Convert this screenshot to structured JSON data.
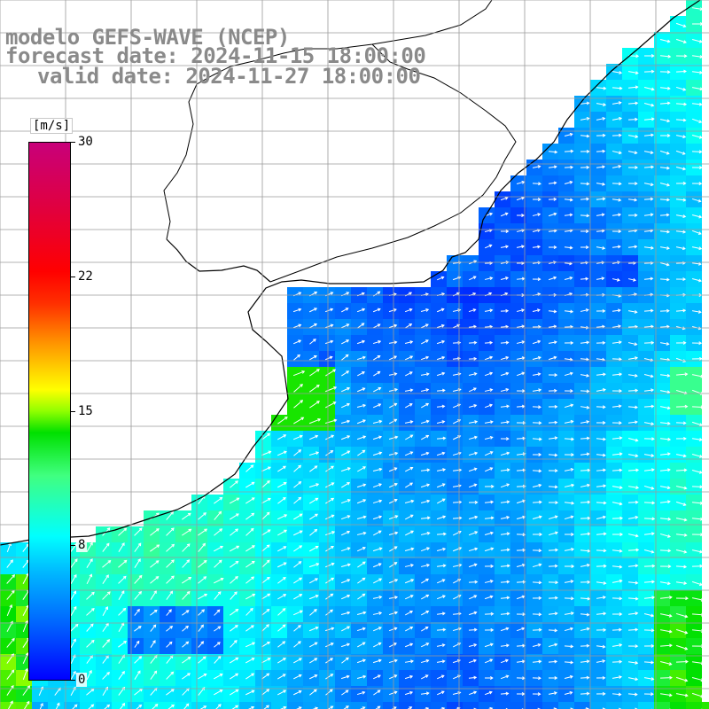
{
  "title": {
    "model": "modelo GEFS-WAVE (NCEP)",
    "forecast": "forecast date: 2024-11-15 18:00:00",
    "valid": "valid date: 2024-11-27 18:00:00"
  },
  "colorbar": {
    "unit": "[m/s]",
    "min": 0,
    "max": 30,
    "ticks": [
      {
        "label": "30",
        "value": 30
      },
      {
        "label": "22",
        "value": 22
      },
      {
        "label": "15",
        "value": 15
      },
      {
        "label": "8",
        "value": 8
      },
      {
        "label": "0",
        "value": 0
      }
    ],
    "colormap": [
      "#0000ff",
      "#00b8ff",
      "#00ffff",
      "#00e000",
      "#ffff00",
      "#ff9000",
      "#ff0000",
      "#c8007a"
    ]
  },
  "map": {
    "field": "wind speed and direction",
    "grid": true,
    "land_color": "#ffffff",
    "grid_color": "#9a9a9a",
    "vector_color": "#ffffff"
  }
}
